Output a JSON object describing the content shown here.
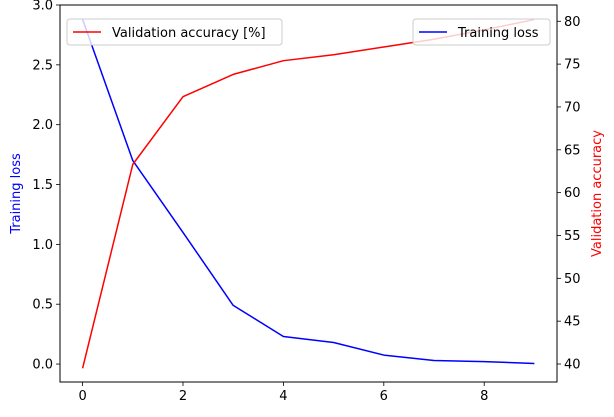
{
  "chart_data": {
    "type": "line",
    "x": [
      0,
      1,
      2,
      3,
      4,
      5,
      6,
      7,
      8,
      9
    ],
    "xlim": [
      -0.45,
      9.45
    ],
    "xticks": [
      0,
      2,
      4,
      6,
      8
    ],
    "grid": false,
    "y_left": {
      "label": "Training loss",
      "color": "#0000ff",
      "lim": [
        -0.15,
        3.0
      ],
      "ticks": [
        0.0,
        0.5,
        1.0,
        1.5,
        2.0,
        2.5,
        3.0
      ],
      "tick_labels": [
        "0.0",
        "0.5",
        "1.0",
        "1.5",
        "2.0",
        "2.5",
        "3.0"
      ]
    },
    "y_right": {
      "label": "Validation accuracy",
      "color": "#ff0000",
      "lim": [
        37.9,
        81.9
      ],
      "ticks": [
        40,
        45,
        50,
        55,
        60,
        65,
        70,
        75,
        80
      ],
      "tick_labels": [
        "40",
        "45",
        "50",
        "55",
        "60",
        "65",
        "70",
        "75",
        "80"
      ]
    },
    "series": [
      {
        "name": "Training loss",
        "axis": "left",
        "color": "#0000ff",
        "values": [
          2.88,
          1.7,
          1.1,
          0.49,
          0.23,
          0.18,
          0.075,
          0.03,
          0.02,
          0.005
        ]
      },
      {
        "name": "Validation accuracy [%]",
        "axis": "right",
        "color": "#ff0000",
        "values": [
          39.5,
          63.3,
          71.2,
          73.8,
          75.4,
          76.1,
          77.0,
          77.9,
          79.0,
          80.2
        ]
      }
    ],
    "legends": [
      {
        "placement": "top-left",
        "series": "Validation accuracy [%]"
      },
      {
        "placement": "top-right",
        "series": "Training loss"
      }
    ]
  }
}
